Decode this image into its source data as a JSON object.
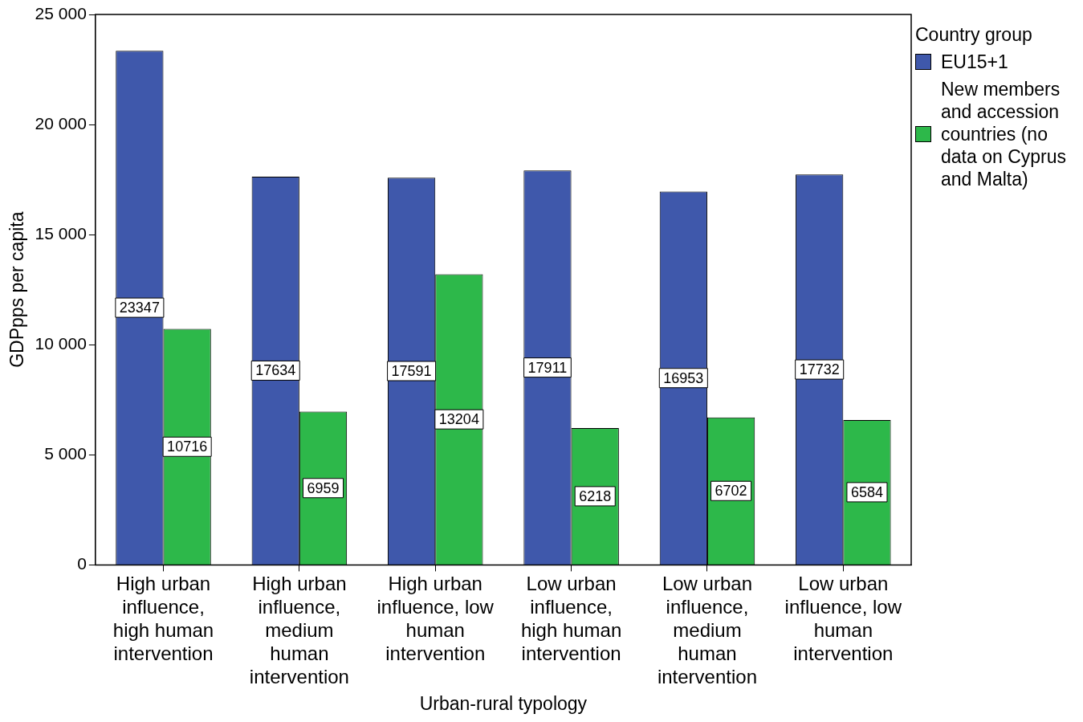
{
  "chart_data": {
    "type": "bar",
    "xlabel": "Urban-rural typology",
    "ylabel": "GDPpps per capita",
    "legend_title": "Country group",
    "categories": [
      "High urban influence, high human intervention",
      "High urban influence, medium human intervention",
      "High urban influence, low human intervention",
      "Low urban influence, high human intervention",
      "Low urban influence, medium human intervention",
      "Low urban influence, low human intervention"
    ],
    "series": [
      {
        "name": "EU15+1",
        "color": "#3f58ab",
        "values": [
          23347,
          17634,
          17591,
          17911,
          16953,
          17732
        ]
      },
      {
        "name": "New members and accession countries (no data on Cyprus and Malta)",
        "color": "#2db84a",
        "values": [
          10716,
          6959,
          13204,
          6218,
          6702,
          6584
        ]
      }
    ],
    "ylim": [
      0,
      25000
    ],
    "yticks": [
      0,
      {
        "value": 5000,
        "label": "5 000"
      },
      {
        "value": 10000,
        "label": "10 000"
      },
      {
        "value": 15000,
        "label": "15 000"
      },
      {
        "value": 20000,
        "label": "20 000"
      },
      {
        "value": 25000,
        "label": "25 000"
      }
    ],
    "grid": false,
    "legend": "right",
    "data_labels": true
  }
}
